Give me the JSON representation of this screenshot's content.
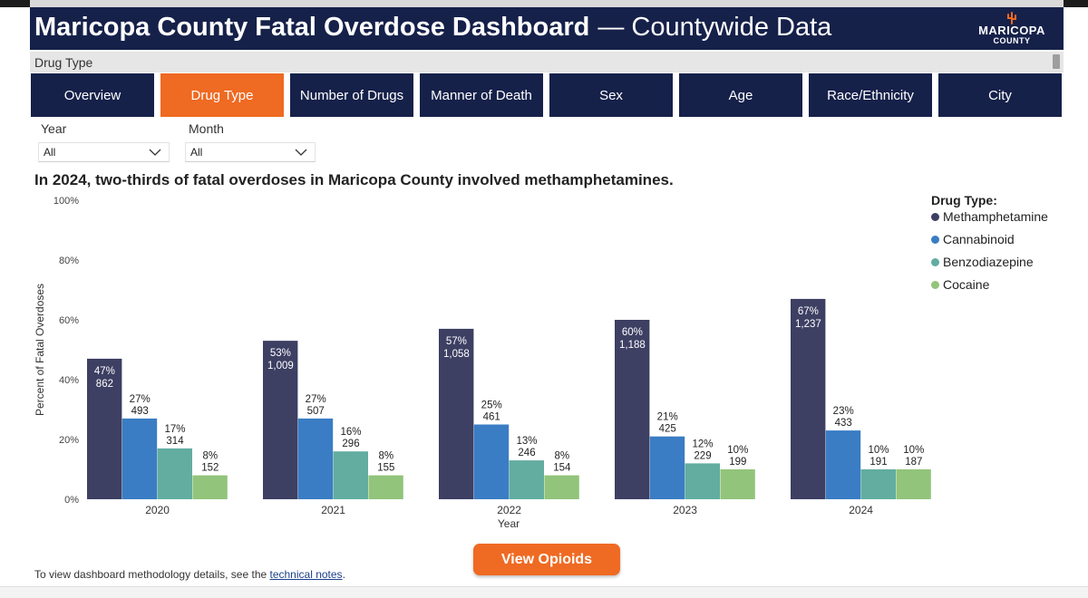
{
  "header": {
    "title_bold": "Maricopa County Fatal Overdose Dashboard",
    "title_rest": "— Countywide Data",
    "logo_line1": "MARICOPA",
    "logo_line2": "COUNTY"
  },
  "page_bar": {
    "label": "Drug Type"
  },
  "tabs": [
    {
      "label": "Overview",
      "active": false
    },
    {
      "label": "Drug Type",
      "active": true
    },
    {
      "label": "Number of Drugs",
      "active": false
    },
    {
      "label": "Manner of Death",
      "active": false
    },
    {
      "label": "Sex",
      "active": false
    },
    {
      "label": "Age",
      "active": false
    },
    {
      "label": "Race/Ethnicity",
      "active": false
    },
    {
      "label": "City",
      "active": false
    }
  ],
  "filters": {
    "year": {
      "label": "Year",
      "value": "All"
    },
    "month": {
      "label": "Month",
      "value": "All"
    }
  },
  "headline": "In 2024, two-thirds of fatal overdoses in Maricopa County involved methamphetamines.",
  "chart_data": {
    "type": "bar",
    "title": "",
    "xlabel": "Year",
    "ylabel": "Percent of Fatal Overdoses",
    "ylim": [
      0,
      100
    ],
    "yticks": [
      "0%",
      "20%",
      "40%",
      "60%",
      "80%",
      "100%"
    ],
    "categories": [
      "2020",
      "2021",
      "2022",
      "2023",
      "2024"
    ],
    "legend_title": "Drug Type:",
    "legend_position": "right",
    "grid": false,
    "series": [
      {
        "name": "Methamphetamine",
        "color": "#3d3f63",
        "values": [
          47,
          53,
          57,
          60,
          67
        ],
        "pct_labels": [
          "47%",
          "53%",
          "57%",
          "60%",
          "67%"
        ],
        "count_labels": [
          "862",
          "1,009",
          "1,058",
          "1,188",
          "1,237"
        ]
      },
      {
        "name": "Cannabinoid",
        "color": "#3a7dc4",
        "values": [
          27,
          27,
          25,
          21,
          23
        ],
        "pct_labels": [
          "27%",
          "27%",
          "25%",
          "21%",
          "23%"
        ],
        "count_labels": [
          "493",
          "507",
          "461",
          "425",
          "433"
        ]
      },
      {
        "name": "Benzodiazepine",
        "color": "#62ada0",
        "values": [
          17,
          16,
          13,
          12,
          10
        ],
        "pct_labels": [
          "17%",
          "16%",
          "13%",
          "12%",
          "10%"
        ],
        "count_labels": [
          "314",
          "296",
          "246",
          "229",
          "191"
        ]
      },
      {
        "name": "Cocaine",
        "color": "#92c47b",
        "values": [
          8,
          8,
          8,
          10,
          10
        ],
        "pct_labels": [
          "8%",
          "8%",
          "8%",
          "10%",
          "10%"
        ],
        "count_labels": [
          "152",
          "155",
          "154",
          "199",
          "187"
        ]
      }
    ]
  },
  "button": {
    "label": "View Opioids"
  },
  "footnote": {
    "text": "To view dashboard methodology details, see the ",
    "link": "technical notes",
    "end": "."
  }
}
